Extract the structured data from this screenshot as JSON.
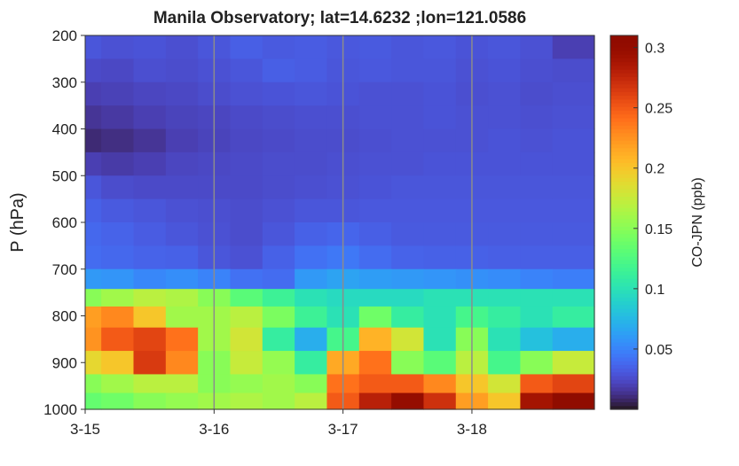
{
  "chart_data": {
    "type": "heatmap",
    "title": "Manila Observatory; lat=14.6232 ;lon=121.0586",
    "xlabel": "",
    "ylabel": "P (hPa)",
    "colorbar_label": "CO-JPN (ppb)",
    "colormap": "turbo",
    "clim": [
      0,
      0.31
    ],
    "ylim": [
      1000,
      200
    ],
    "x_ticks": [
      "3-15",
      "3-16",
      "3-17",
      "3-18"
    ],
    "y_ticks": [
      "200",
      "300",
      "400",
      "500",
      "600",
      "700",
      "800",
      "900",
      "1000"
    ],
    "colorbar_ticks": [
      "0.05",
      "0.1",
      "0.15",
      "0.2",
      "0.25",
      "0.3"
    ],
    "colorbar_tick_values": [
      0.05,
      0.1,
      0.15,
      0.2,
      0.25,
      0.3
    ],
    "vertical_day_lines": true,
    "x_days": [
      0,
      0.25,
      0.5,
      0.75,
      1,
      1.25,
      1.5,
      1.75,
      2,
      2.25,
      2.5,
      2.75,
      3,
      3.25,
      3.5,
      3.75
    ],
    "levels_hPa": [
      225,
      275,
      325,
      375,
      425,
      475,
      525,
      575,
      625,
      675,
      725,
      760,
      800,
      850,
      900,
      950,
      980
    ],
    "values": [
      [
        0.03,
        0.028,
        0.029,
        0.027,
        0.03,
        0.034,
        0.032,
        0.033,
        0.031,
        0.032,
        0.03,
        0.031,
        0.029,
        0.03,
        0.028,
        0.02
      ],
      [
        0.025,
        0.024,
        0.027,
        0.026,
        0.028,
        0.03,
        0.034,
        0.033,
        0.03,
        0.031,
        0.03,
        0.03,
        0.028,
        0.029,
        0.027,
        0.026
      ],
      [
        0.02,
        0.021,
        0.023,
        0.024,
        0.026,
        0.028,
        0.029,
        0.03,
        0.029,
        0.028,
        0.028,
        0.029,
        0.027,
        0.028,
        0.026,
        0.027
      ],
      [
        0.015,
        0.017,
        0.02,
        0.022,
        0.023,
        0.025,
        0.026,
        0.027,
        0.027,
        0.028,
        0.028,
        0.029,
        0.028,
        0.028,
        0.027,
        0.028
      ],
      [
        0.01,
        0.012,
        0.015,
        0.02,
        0.022,
        0.024,
        0.025,
        0.026,
        0.026,
        0.027,
        0.028,
        0.028,
        0.028,
        0.029,
        0.028,
        0.029
      ],
      [
        0.02,
        0.018,
        0.02,
        0.023,
        0.024,
        0.025,
        0.026,
        0.026,
        0.027,
        0.028,
        0.028,
        0.029,
        0.029,
        0.029,
        0.029,
        0.029
      ],
      [
        0.03,
        0.026,
        0.025,
        0.025,
        0.025,
        0.025,
        0.026,
        0.027,
        0.028,
        0.029,
        0.03,
        0.03,
        0.03,
        0.03,
        0.03,
        0.03
      ],
      [
        0.035,
        0.032,
        0.03,
        0.028,
        0.027,
        0.026,
        0.028,
        0.03,
        0.03,
        0.031,
        0.031,
        0.031,
        0.031,
        0.031,
        0.031,
        0.031
      ],
      [
        0.038,
        0.036,
        0.033,
        0.03,
        0.028,
        0.026,
        0.03,
        0.035,
        0.037,
        0.034,
        0.032,
        0.032,
        0.032,
        0.032,
        0.032,
        0.032
      ],
      [
        0.04,
        0.038,
        0.036,
        0.035,
        0.03,
        0.028,
        0.035,
        0.042,
        0.045,
        0.04,
        0.036,
        0.035,
        0.035,
        0.034,
        0.034,
        0.034
      ],
      [
        0.06,
        0.058,
        0.052,
        0.055,
        0.05,
        0.042,
        0.04,
        0.06,
        0.065,
        0.062,
        0.06,
        0.058,
        0.056,
        0.054,
        0.05,
        0.048
      ],
      [
        0.15,
        0.16,
        0.17,
        0.165,
        0.15,
        0.13,
        0.115,
        0.1,
        0.095,
        0.095,
        0.095,
        0.1,
        0.1,
        0.1,
        0.1,
        0.1
      ],
      [
        0.22,
        0.23,
        0.2,
        0.16,
        0.16,
        0.17,
        0.145,
        0.115,
        0.1,
        0.14,
        0.11,
        0.1,
        0.12,
        0.11,
        0.1,
        0.11
      ],
      [
        0.225,
        0.25,
        0.26,
        0.24,
        0.16,
        0.18,
        0.11,
        0.07,
        0.12,
        0.21,
        0.18,
        0.1,
        0.15,
        0.1,
        0.08,
        0.07
      ],
      [
        0.19,
        0.2,
        0.265,
        0.23,
        0.15,
        0.175,
        0.155,
        0.11,
        0.215,
        0.24,
        0.15,
        0.13,
        0.17,
        0.12,
        0.15,
        0.175
      ],
      [
        0.15,
        0.16,
        0.17,
        0.17,
        0.15,
        0.155,
        0.16,
        0.15,
        0.24,
        0.25,
        0.25,
        0.23,
        0.2,
        0.18,
        0.25,
        0.26
      ],
      [
        0.135,
        0.14,
        0.15,
        0.155,
        0.16,
        0.165,
        0.16,
        0.17,
        0.25,
        0.28,
        0.3,
        0.27,
        0.22,
        0.2,
        0.29,
        0.31
      ]
    ]
  }
}
